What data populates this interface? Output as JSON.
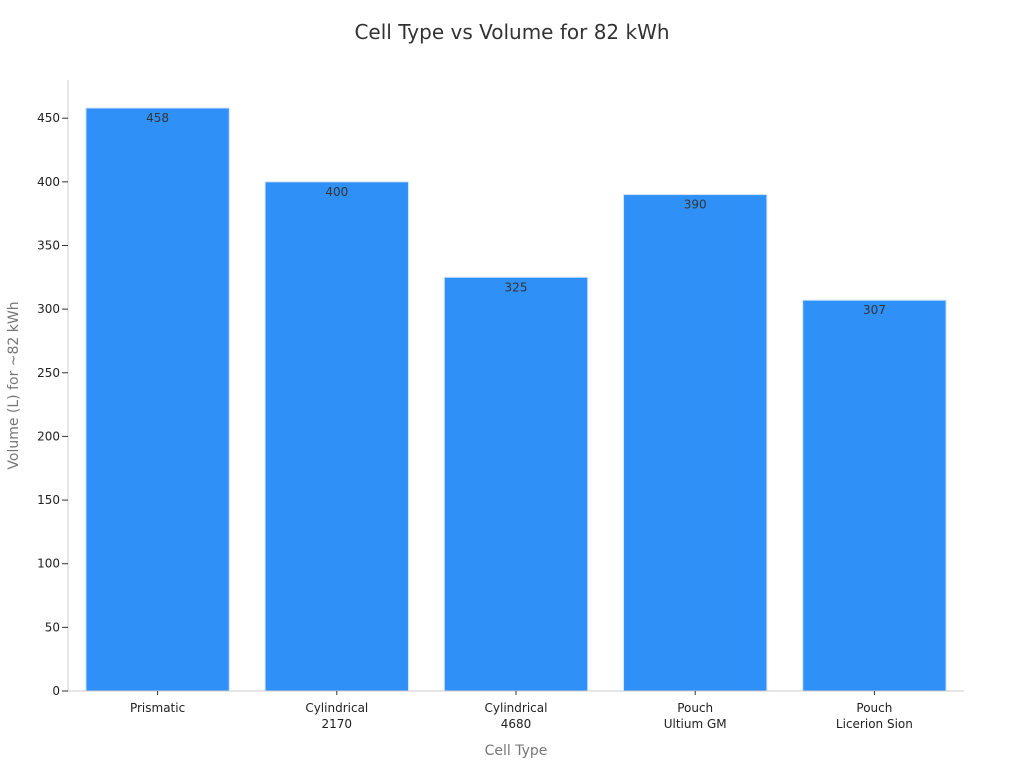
{
  "chart_data": {
    "type": "bar",
    "title": "Cell Type vs Volume for 82 kWh",
    "xlabel": "Cell Type",
    "ylabel": "Volume (L) for ~82 kWh",
    "categories": [
      [
        "Prismatic"
      ],
      [
        "Cylindrical",
        "2170"
      ],
      [
        "Cylindrical",
        "4680"
      ],
      [
        "Pouch",
        "Ultium GM"
      ],
      [
        "Pouch",
        "Licerion Sion"
      ]
    ],
    "values": [
      458,
      400,
      325,
      390,
      307
    ],
    "ylim": [
      0,
      480
    ],
    "yticks": [
      0,
      50,
      100,
      150,
      200,
      250,
      300,
      350,
      400,
      450
    ],
    "grid": false,
    "bar_color": "#2f91f8",
    "data_labels": true
  }
}
